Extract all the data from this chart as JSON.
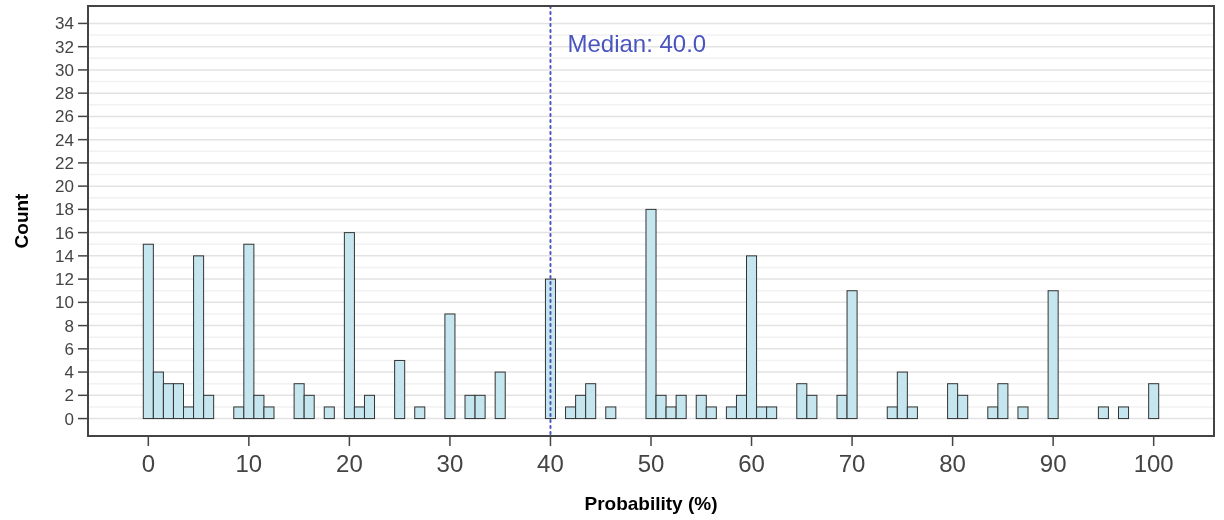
{
  "chart_data": {
    "type": "histogram",
    "xlabel": "Probability (%)",
    "ylabel": "Count",
    "bins": [
      -0.5,
      0.5,
      1.5,
      2.5,
      3.5,
      4.5,
      5.5,
      6.5,
      7.5,
      8.5,
      9.5,
      10.5,
      11.5,
      12.5,
      13.5,
      14.5,
      15.5,
      16.5,
      17.5,
      18.5,
      19.5,
      20.5,
      21.5,
      22.5,
      23.5,
      24.5,
      25.5,
      26.5,
      27.5,
      28.5,
      29.5,
      30.5,
      31.5,
      32.5,
      33.5,
      34.5,
      35.5,
      36.5,
      37.5,
      38.5,
      39.5,
      40.5,
      41.5,
      42.5,
      43.5,
      44.5,
      45.5,
      46.5,
      47.5,
      48.5,
      49.5,
      50.5,
      51.5,
      52.5,
      53.5,
      54.5,
      55.5,
      56.5,
      57.5,
      58.5,
      59.5,
      60.5,
      61.5,
      62.5,
      63.5,
      64.5,
      65.5,
      66.5,
      67.5,
      68.5,
      69.5,
      70.5,
      71.5,
      72.5,
      73.5,
      74.5,
      75.5,
      76.5,
      77.5,
      78.5,
      79.5,
      80.5,
      81.5,
      82.5,
      83.5,
      84.5,
      85.5,
      86.5,
      87.5,
      88.5,
      89.5,
      90.5,
      91.5,
      92.5,
      93.5,
      94.5,
      95.5,
      96.5,
      97.5,
      98.5,
      99.5,
      100.5
    ],
    "values": [
      15,
      4,
      3,
      3,
      1,
      14,
      2,
      0,
      0,
      1,
      15,
      2,
      1,
      0,
      0,
      3,
      2,
      0,
      1,
      0,
      16,
      1,
      2,
      0,
      0,
      5,
      0,
      1,
      0,
      0,
      9,
      0,
      2,
      2,
      0,
      4,
      0,
      0,
      0,
      0,
      12,
      0,
      1,
      2,
      3,
      0,
      1,
      0,
      0,
      0,
      18,
      2,
      1,
      2,
      0,
      2,
      1,
      0,
      1,
      2,
      14,
      1,
      1,
      0,
      0,
      3,
      2,
      0,
      0,
      2,
      11,
      0,
      0,
      0,
      1,
      4,
      1,
      0,
      0,
      0,
      3,
      2,
      0,
      0,
      1,
      3,
      0,
      1,
      0,
      0,
      11,
      0,
      0,
      0,
      0,
      1,
      0,
      1,
      0,
      0,
      3
    ],
    "color": "#c5e5ef",
    "xlim": [
      -6,
      106
    ],
    "xticks": [
      0,
      10,
      20,
      30,
      40,
      50,
      60,
      70,
      80,
      90,
      100
    ],
    "ylim": [
      -1.5,
      35.5
    ],
    "yticks": [
      0,
      2,
      4,
      6,
      8,
      10,
      12,
      14,
      16,
      18,
      20,
      22,
      24,
      26,
      28,
      30,
      32,
      34
    ],
    "grid": "y",
    "ref_lines": [
      {
        "axis": "x",
        "value": 40,
        "label": "Median: 40.0",
        "color": "#4a55c0",
        "line_style": "dotted"
      }
    ]
  }
}
